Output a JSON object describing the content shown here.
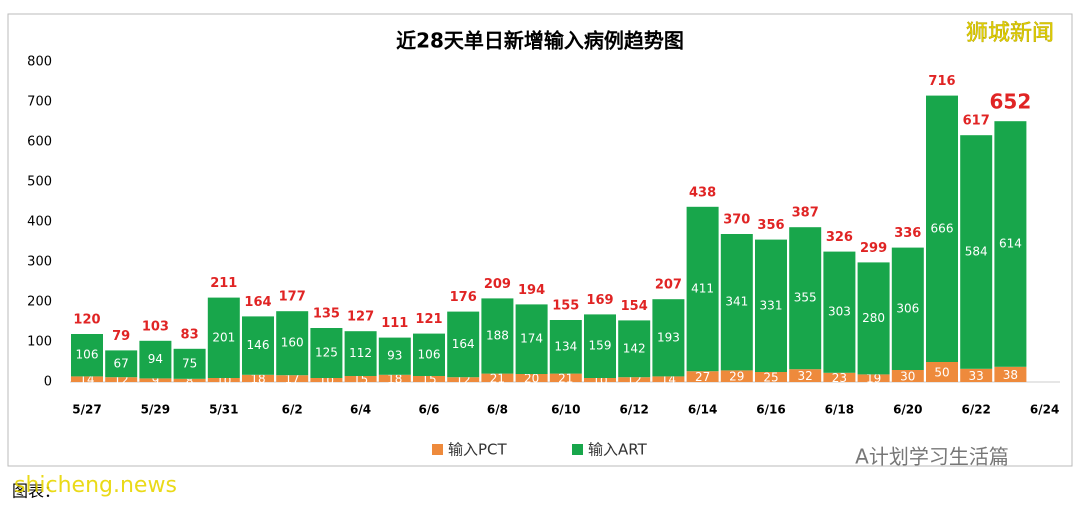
{
  "chart_data": {
    "type": "stacked-bar",
    "title": "近28天单日新增输入病例趋势图",
    "categories": [
      "5/27",
      null,
      "5/29",
      null,
      "5/31",
      null,
      "6/2",
      null,
      "6/4",
      null,
      "6/6",
      null,
      "6/8",
      null,
      "6/10",
      null,
      "6/12",
      null,
      "6/14",
      null,
      "6/16",
      null,
      "6/18",
      null,
      "6/20",
      null,
      "6/22",
      null,
      "6/24"
    ],
    "series": [
      {
        "name": "输入PCT",
        "color": "#ee8a3c",
        "values": [
          14,
          12,
          9,
          8,
          10,
          18,
          17,
          10,
          15,
          18,
          15,
          12,
          21,
          20,
          21,
          10,
          12,
          14,
          27,
          29,
          25,
          32,
          23,
          19,
          30,
          50,
          33,
          38,
          null
        ]
      },
      {
        "name": "输入ART",
        "color": "#18a64b",
        "values": [
          106,
          67,
          94,
          75,
          201,
          146,
          160,
          125,
          112,
          93,
          106,
          164,
          188,
          174,
          134,
          159,
          142,
          193,
          411,
          341,
          331,
          355,
          303,
          280,
          306,
          666,
          584,
          614,
          null
        ]
      }
    ],
    "totals": [
      120,
      79,
      103,
      83,
      211,
      164,
      177,
      135,
      127,
      111,
      121,
      176,
      209,
      194,
      155,
      169,
      154,
      207,
      438,
      370,
      356,
      387,
      326,
      299,
      336,
      716,
      617,
      652,
      null
    ],
    "ylim": [
      0,
      800
    ],
    "yticks": [
      0,
      100,
      200,
      300,
      400,
      500,
      600,
      700,
      800
    ],
    "grid": false
  },
  "watermarks": {
    "top_right": "狮城新闻",
    "bottom_right": "A计划学习生活篇",
    "bottom_left": "shicheng.news",
    "caption": "图表："
  }
}
